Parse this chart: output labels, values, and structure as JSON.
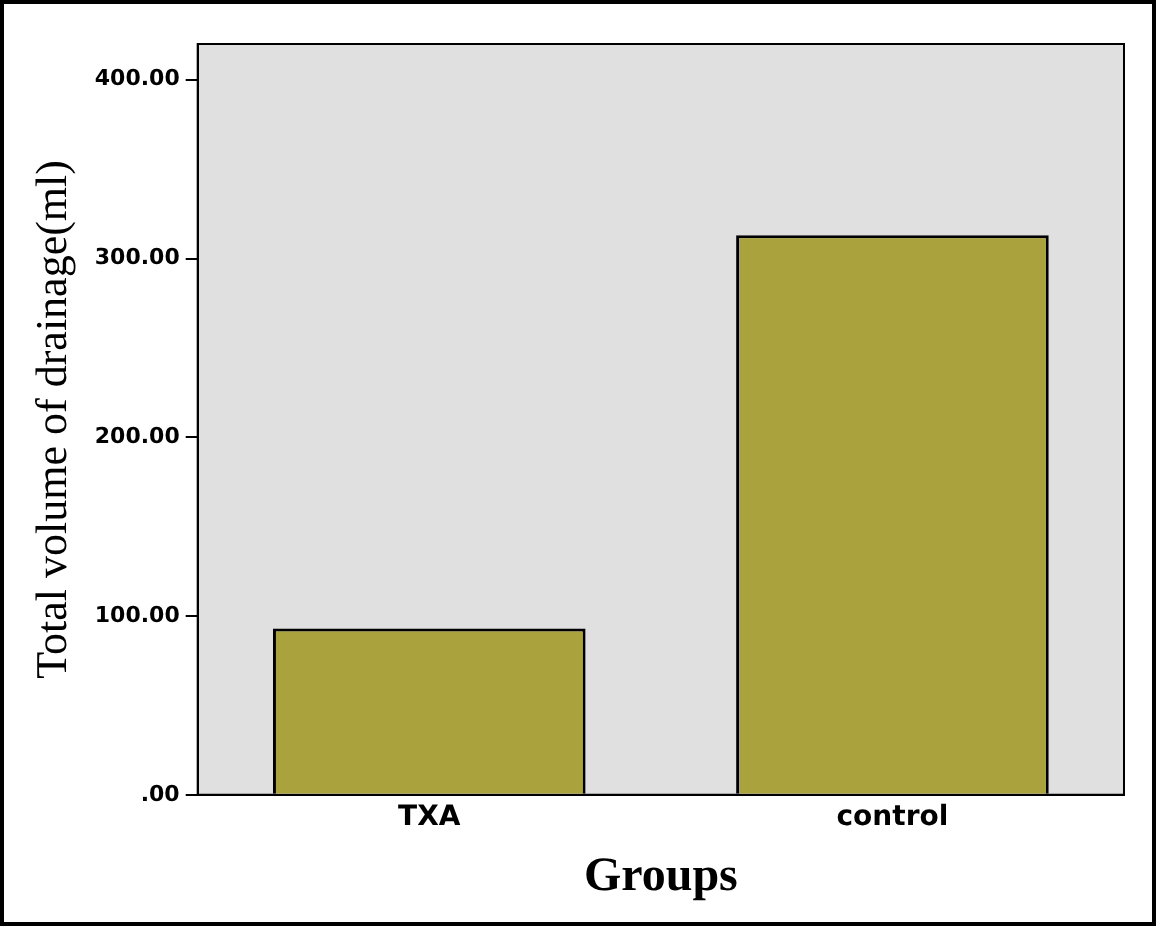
{
  "chart_data": {
    "type": "bar",
    "xlabel": "Groups",
    "ylabel": "Total volume of drainage(ml)",
    "categories": [
      "TXA",
      "control"
    ],
    "series": [
      {
        "color": "#aaa23c",
        "values": [
          93,
          313
        ]
      }
    ],
    "ylim": [
      0,
      420
    ],
    "yticks": [
      {
        "value": 0,
        "label": ".00"
      },
      {
        "value": 100,
        "label": "100.00"
      },
      {
        "value": 200,
        "label": "200.00"
      },
      {
        "value": 300,
        "label": "300.00"
      },
      {
        "value": 400,
        "label": "400.00"
      }
    ],
    "grid": false,
    "legend": false
  }
}
